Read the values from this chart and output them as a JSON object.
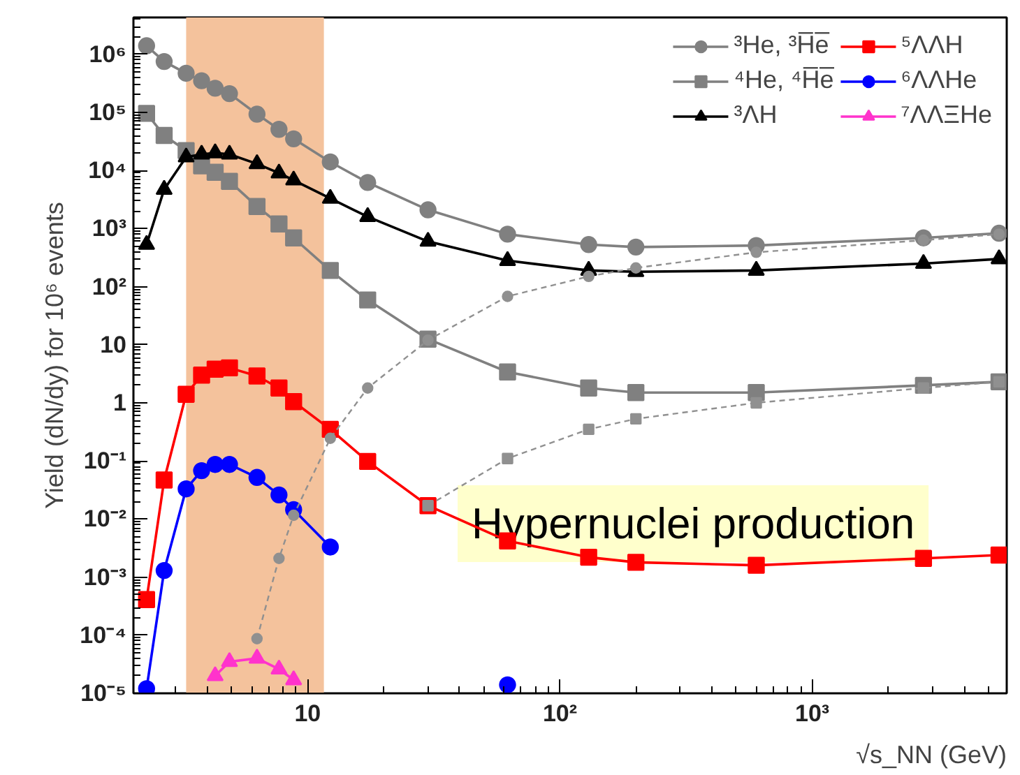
{
  "chart_data": {
    "type": "line",
    "xlabel": "√s_NN (GeV)",
    "ylabel": "Yield (dN/dy) for 10⁶ events",
    "log": "xy",
    "grid": false,
    "legend": "top right",
    "x": [
      2.3,
      2.7,
      3.3,
      3.8,
      4.3,
      4.9,
      6.3,
      7.7,
      8.8,
      12.3,
      17.3,
      30,
      62,
      130,
      200,
      600,
      2760,
      5500
    ],
    "xlim": [
      2.04,
      5900
    ],
    "ylim": [
      1e-05,
      4300000
    ],
    "xticks": [
      10,
      {
        "value": 100,
        "label": "10²"
      },
      {
        "value": 1000,
        "label": "10³"
      }
    ],
    "yticks": [
      {
        "value": 1e-05,
        "label": "10⁻⁵"
      },
      {
        "value": 0.0001,
        "label": "10⁻⁴"
      },
      {
        "value": 0.001,
        "label": "10⁻³"
      },
      {
        "value": 0.01,
        "label": "10⁻²"
      },
      {
        "value": 0.1,
        "label": "10⁻¹"
      },
      1,
      10,
      {
        "value": 100,
        "label": "10²"
      },
      {
        "value": 1000,
        "label": "10³"
      },
      {
        "value": 10000,
        "label": "10⁴"
      },
      {
        "value": 100000,
        "label": "10⁵"
      },
      {
        "value": 1000000,
        "label": "10⁶"
      }
    ],
    "bands": [
      {
        "axis": "x",
        "from": 3.3,
        "to": 11.6,
        "color": "#f4c29c"
      }
    ],
    "annotations": [
      "Hypernuclei production"
    ],
    "series": [
      {
        "name": "³He, ³H̅e̅",
        "color": "#808080",
        "marker": "circle",
        "line_style": "solid",
        "values": [
          1400000,
          750000,
          470000,
          350000,
          260000,
          210000,
          93000,
          51000,
          35000,
          14000,
          6200,
          2100,
          800,
          530,
          480,
          510,
          690,
          830
        ]
      },
      {
        "name": "⁴He, ⁴H̅e̅",
        "color": "#808080",
        "marker": "square",
        "line_style": "solid",
        "values": [
          96000,
          40000,
          22000,
          12000,
          9300,
          6500,
          2400,
          1200,
          690,
          190,
          59,
          12.5,
          3.4,
          1.8,
          1.5,
          1.5,
          2.0,
          2.3
        ]
      },
      {
        "name": "³ΛH",
        "color": "#000000",
        "marker": "triangle",
        "line_style": "solid",
        "values": [
          530,
          4700,
          17000,
          19000,
          20000,
          19000,
          13000,
          9000,
          6800,
          3300,
          1600,
          600,
          280,
          190,
          180,
          190,
          250,
          300
        ]
      },
      {
        "name": "⁵ΛΛH",
        "color": "#ff0000",
        "marker": "square",
        "line_style": "solid",
        "values": [
          0.00041,
          0.047,
          1.4,
          3.0,
          3.8,
          4.0,
          2.9,
          1.8,
          1.05,
          0.35,
          0.098,
          0.017,
          0.0042,
          0.0022,
          0.0018,
          0.0016,
          0.0021,
          0.0024
        ]
      },
      {
        "name": "⁶ΛΛHe",
        "color": "#0000ff",
        "marker": "circle",
        "line_style": "solid",
        "values": [
          1.2e-05,
          0.0013,
          0.033,
          0.068,
          0.087,
          0.087,
          0.052,
          0.026,
          0.0145,
          0.0033,
          null,
          null,
          1.4e-05,
          null,
          null,
          null,
          null,
          null
        ]
      },
      {
        "name": "⁷ΛΛΞHe",
        "color": "#ff33cc",
        "marker": "triangle",
        "line_style": "solid",
        "values": [
          null,
          null,
          null,
          null,
          2e-05,
          3.5e-05,
          4e-05,
          2.6e-05,
          1.7e-05,
          null,
          null,
          null,
          null,
          null,
          null,
          null,
          null,
          null
        ]
      },
      {
        "color": "#909090",
        "marker": "circle",
        "line_style": "dashed",
        "values": [
          null,
          null,
          null,
          null,
          null,
          null,
          8.7e-05,
          0.0021,
          0.0116,
          0.245,
          1.8,
          12,
          68,
          150,
          210,
          390,
          630,
          800
        ]
      },
      {
        "color": "#909090",
        "marker": "square",
        "line_style": "dashed",
        "values": [
          null,
          null,
          null,
          null,
          null,
          null,
          null,
          null,
          null,
          null,
          null,
          0.017,
          0.11,
          0.35,
          0.53,
          1.0,
          1.8,
          2.3
        ]
      }
    ]
  }
}
